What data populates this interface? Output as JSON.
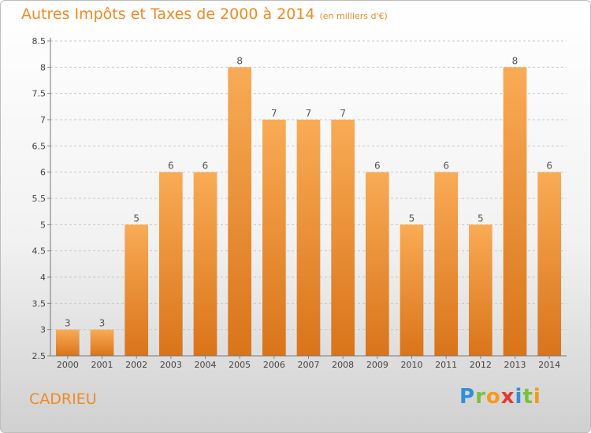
{
  "title": "Autres Impôts et Taxes de 2000 à 2014",
  "subtitle": "(en milliers d'€)",
  "commune": "CADRIEU",
  "logo": {
    "text": "Proxiti",
    "letters": [
      {
        "ch": "P",
        "color": "#2f8fd8"
      },
      {
        "ch": "r",
        "color": "#7dbf3b"
      },
      {
        "ch": "o",
        "color": "#f39a1f"
      },
      {
        "ch": "x",
        "color": "#e4392e"
      },
      {
        "ch": "i",
        "color": "#2f8fd8"
      },
      {
        "ch": "t",
        "color": "#7dbf3b"
      },
      {
        "ch": "i",
        "color": "#f39a1f"
      }
    ]
  },
  "colors": {
    "bar_top": "#f9ab55",
    "bar_bottom": "#d9741a",
    "title": "#ef8a23",
    "grid": "#c8c8c8"
  },
  "chart_data": {
    "type": "bar",
    "title": "Autres Impôts et Taxes de 2000 à 2014",
    "subtitle": "(en milliers d'€)",
    "categories": [
      "2000",
      "2001",
      "2002",
      "2003",
      "2004",
      "2005",
      "2006",
      "2007",
      "2008",
      "2009",
      "2010",
      "2011",
      "2012",
      "2013",
      "2014"
    ],
    "values": [
      3,
      3,
      5,
      6,
      6,
      8,
      7,
      7,
      7,
      6,
      5,
      6,
      5,
      8,
      6
    ],
    "data_labels": [
      "3",
      "3",
      "5",
      "6",
      "6",
      "8",
      "7",
      "7",
      "7",
      "6",
      "5",
      "6",
      "5",
      "8",
      "6"
    ],
    "ylim": [
      2.5,
      8.5
    ],
    "yticks": [
      2.5,
      3,
      3.5,
      4,
      4.5,
      5,
      5.5,
      6,
      6.5,
      7,
      7.5,
      8,
      8.5
    ],
    "ytick_labels": [
      "2.5",
      "3",
      "3.5",
      "4",
      "4.5",
      "5",
      "5.5",
      "6",
      "6.5",
      "7",
      "7.5",
      "8",
      "8.5"
    ],
    "grid": true,
    "grid_style": "dashed-horizontal",
    "xlabel": "",
    "ylabel": ""
  }
}
